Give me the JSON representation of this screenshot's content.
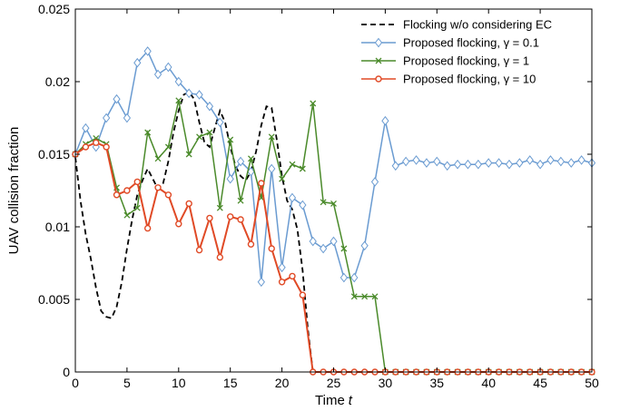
{
  "chart_data": {
    "type": "line",
    "xlabel": "Time",
    "xlabel_var": "t",
    "ylabel": "UAV collision fraction",
    "xlim": [
      0,
      50
    ],
    "ylim": [
      0,
      0.025
    ],
    "xticks": [
      0,
      5,
      10,
      15,
      20,
      25,
      30,
      35,
      40,
      45,
      50
    ],
    "yticks": [
      0,
      0.005,
      0.01,
      0.015,
      0.02,
      0.025
    ],
    "ytick_labels": [
      "0",
      "0.005",
      "0.01",
      "0.015",
      "0.02",
      "0.025"
    ],
    "grid": false,
    "legend_position": "top-right",
    "series": [
      {
        "name": "Flocking w/o considering EC",
        "color": "#000000",
        "style": "dashed",
        "marker": "none",
        "x": [
          0,
          0.5,
          1,
          1.5,
          2,
          2.5,
          3,
          3.5,
          4,
          4.5,
          5,
          5.5,
          6,
          6.5,
          7,
          7.5,
          8,
          8.5,
          9,
          9.5,
          10,
          10.5,
          11,
          11.5,
          12,
          12.5,
          13,
          13.5,
          14,
          14.5,
          15,
          15.5,
          16,
          16.5,
          17,
          17.5,
          18,
          18.5,
          19,
          19.5,
          20,
          20.5,
          21,
          21.5,
          22,
          22.5,
          23,
          23.5,
          24,
          25,
          26,
          27,
          28,
          29,
          30,
          31,
          32,
          33,
          34,
          35,
          36,
          37,
          38,
          39,
          40,
          41,
          42,
          43,
          44,
          45,
          46,
          47,
          48,
          49,
          50
        ],
        "y": [
          0.0148,
          0.0118,
          0.0095,
          0.0078,
          0.0058,
          0.0042,
          0.0038,
          0.0037,
          0.0045,
          0.0062,
          0.0085,
          0.0105,
          0.0122,
          0.0132,
          0.014,
          0.0133,
          0.0126,
          0.013,
          0.0145,
          0.0165,
          0.018,
          0.0191,
          0.0193,
          0.0188,
          0.0172,
          0.0158,
          0.0155,
          0.0168,
          0.018,
          0.0172,
          0.0155,
          0.0142,
          0.0135,
          0.0132,
          0.0138,
          0.0152,
          0.017,
          0.0183,
          0.0182,
          0.016,
          0.0135,
          0.0118,
          0.0112,
          0.0098,
          0.007,
          0.003,
          0,
          0,
          0,
          0,
          0,
          0,
          0,
          0,
          0,
          0,
          0,
          0,
          0,
          0,
          0,
          0,
          0,
          0,
          0,
          0,
          0,
          0,
          0,
          0,
          0,
          0,
          0,
          0,
          0
        ]
      },
      {
        "name": "Proposed flocking, γ = 0.1",
        "color": "#6a9bd1",
        "style": "solid",
        "marker": "diamond",
        "x": [
          0,
          1,
          2,
          3,
          4,
          5,
          6,
          7,
          8,
          9,
          10,
          11,
          12,
          13,
          14,
          15,
          16,
          17,
          18,
          19,
          20,
          21,
          22,
          23,
          24,
          25,
          26,
          27,
          28,
          29,
          30,
          31,
          32,
          33,
          34,
          35,
          36,
          37,
          38,
          39,
          40,
          41,
          42,
          43,
          44,
          45,
          46,
          47,
          48,
          49,
          50
        ],
        "y": [
          0.015,
          0.0168,
          0.0155,
          0.0175,
          0.0188,
          0.0175,
          0.0213,
          0.0221,
          0.0205,
          0.021,
          0.02,
          0.0192,
          0.0191,
          0.0183,
          0.0172,
          0.0133,
          0.0145,
          0.0138,
          0.0062,
          0.014,
          0.0072,
          0.012,
          0.0115,
          0.009,
          0.0085,
          0.009,
          0.0065,
          0.0065,
          0.0087,
          0.0131,
          0.0173,
          0.0142,
          0.0145,
          0.0146,
          0.0144,
          0.0145,
          0.0142,
          0.0143,
          0.0143,
          0.0143,
          0.0144,
          0.0144,
          0.0143,
          0.0144,
          0.0146,
          0.0143,
          0.0146,
          0.0145,
          0.0144,
          0.0146,
          0.0144
        ]
      },
      {
        "name": "Proposed flocking, γ = 1",
        "color": "#4a8a2a",
        "style": "solid",
        "marker": "x",
        "x": [
          0,
          1,
          2,
          3,
          4,
          5,
          6,
          7,
          8,
          9,
          10,
          11,
          12,
          13,
          14,
          15,
          16,
          17,
          18,
          19,
          20,
          21,
          22,
          23,
          24,
          25,
          26,
          27,
          28,
          29,
          30,
          31,
          32,
          33,
          34,
          35,
          36,
          37,
          38,
          39,
          40,
          41,
          42,
          43,
          44,
          45,
          46,
          47,
          48,
          49,
          50
        ],
        "y": [
          0.015,
          0.0157,
          0.0161,
          0.0157,
          0.0127,
          0.0108,
          0.0113,
          0.0165,
          0.0147,
          0.0155,
          0.0187,
          0.015,
          0.0162,
          0.0165,
          0.0113,
          0.016,
          0.0118,
          0.0147,
          0.012,
          0.0162,
          0.0133,
          0.0143,
          0.014,
          0.0185,
          0.0117,
          0.0116,
          0.0085,
          0.0052,
          0.0052,
          0.0052,
          0,
          0,
          0,
          0,
          0,
          0,
          0,
          0,
          0,
          0,
          0,
          0,
          0,
          0,
          0,
          0,
          0,
          0,
          0,
          0,
          0
        ]
      },
      {
        "name": "Proposed flocking, γ = 10",
        "color": "#e04a26",
        "style": "solid",
        "marker": "circle",
        "x": [
          0,
          1,
          2,
          3,
          4,
          5,
          6,
          7,
          8,
          9,
          10,
          11,
          12,
          13,
          14,
          15,
          16,
          17,
          18,
          19,
          20,
          21,
          22,
          23,
          24,
          25,
          26,
          27,
          28,
          29,
          30,
          31,
          32,
          33,
          34,
          35,
          36,
          37,
          38,
          39,
          40,
          41,
          42,
          43,
          44,
          45,
          46,
          47,
          48,
          49,
          50
        ],
        "y": [
          0.015,
          0.0155,
          0.0158,
          0.0155,
          0.0122,
          0.0125,
          0.0131,
          0.0099,
          0.0127,
          0.0122,
          0.0102,
          0.0116,
          0.0084,
          0.0106,
          0.0079,
          0.0107,
          0.0105,
          0.0088,
          0.013,
          0.0085,
          0.0062,
          0.0066,
          0.0053,
          0,
          0,
          0,
          0,
          0,
          0,
          0,
          0,
          0,
          0,
          0,
          0,
          0,
          0,
          0,
          0,
          0,
          0,
          0,
          0,
          0,
          0,
          0,
          0,
          0,
          0,
          0,
          0
        ]
      }
    ]
  }
}
